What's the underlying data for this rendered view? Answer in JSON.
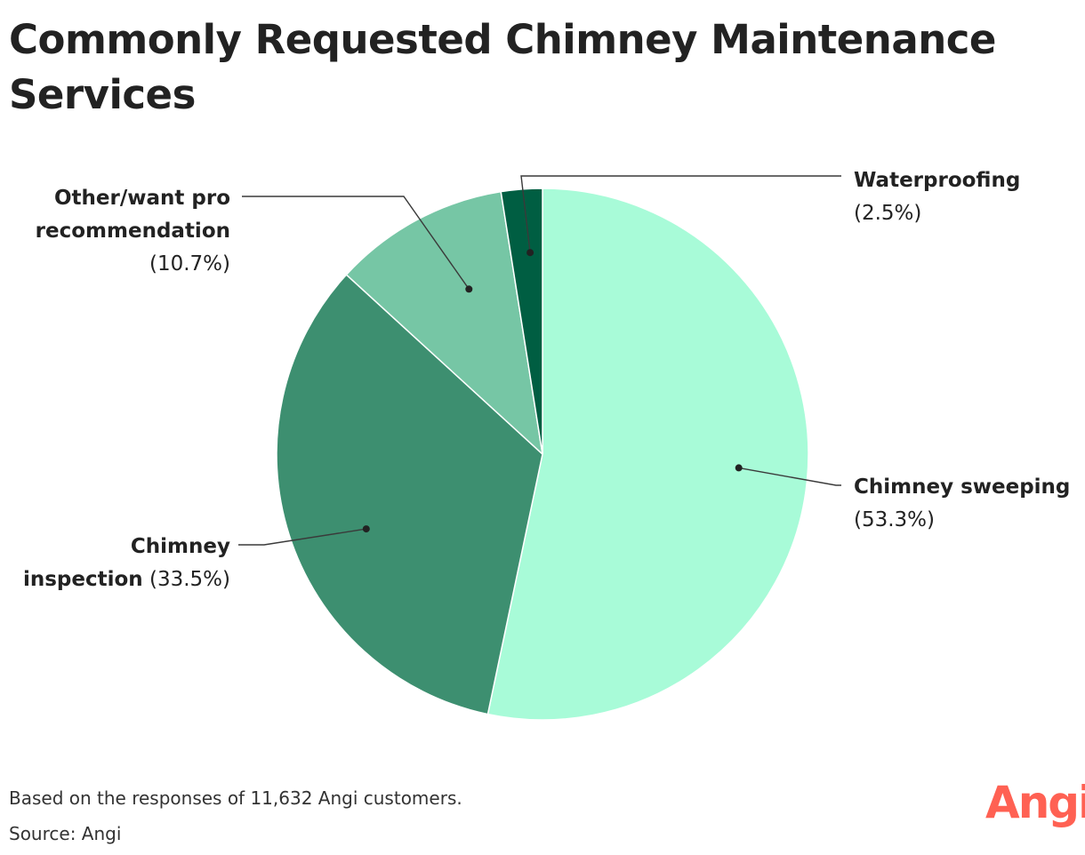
{
  "chart_data": {
    "type": "pie",
    "title": "Commonly Requested Chimney Maintenance Services",
    "slices": [
      {
        "name": "Chimney sweeping",
        "value": 53.3,
        "pct_label": "(53.3%)",
        "color": "#a8fbd8",
        "label_lines": [
          [
            "Chimney sweeping",
            ""
          ],
          [
            "",
            "(53.3%)"
          ]
        ]
      },
      {
        "name": "Chimney inspection",
        "value": 33.5,
        "pct_label": "(33.5%)",
        "color": "#3d8f70",
        "label_lines": [
          [
            "Chimney",
            ""
          ],
          [
            "inspection",
            " (33.5%)"
          ]
        ]
      },
      {
        "name": "Other/want pro recommendation",
        "value": 10.7,
        "pct_label": "(10.7%)",
        "color": "#76c6a5",
        "label_lines": [
          [
            "Other/want pro",
            ""
          ],
          [
            "recommendation",
            ""
          ],
          [
            "",
            "(10.7%)"
          ]
        ]
      },
      {
        "name": "Waterproofing",
        "value": 2.5,
        "pct_label": "(2.5%)",
        "color": "#005e42",
        "label_lines": [
          [
            "Waterproofing",
            ""
          ],
          [
            "",
            "(2.5%)"
          ]
        ]
      }
    ],
    "start": "12 o'clock",
    "direction": "clockwise"
  },
  "footer": {
    "note": "Based on the responses of 11,632 Angi customers.",
    "source": "Source: Angi"
  },
  "brand": {
    "logo_text": "Angi",
    "color": "#ff6153"
  }
}
